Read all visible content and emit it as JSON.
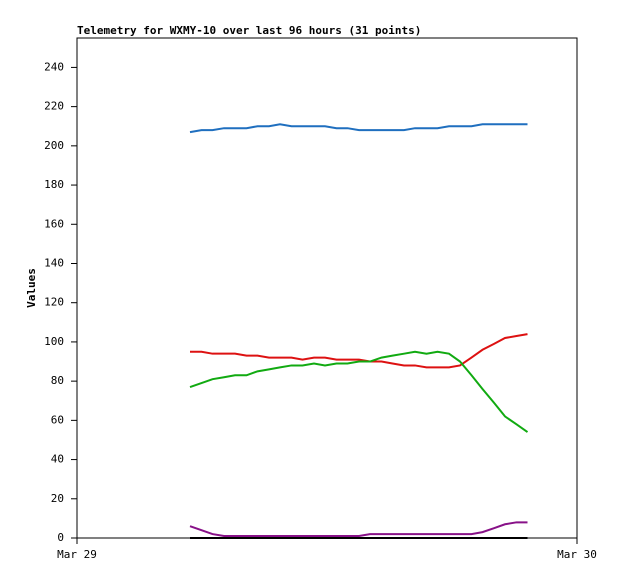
{
  "chart_data": {
    "type": "line",
    "title": "Telemetry for WXMY-10 over last 96 hours (31 points)",
    "y_label": "Values",
    "x": [
      0.226,
      0.249,
      0.271,
      0.294,
      0.316,
      0.339,
      0.361,
      0.384,
      0.406,
      0.429,
      0.451,
      0.474,
      0.496,
      0.519,
      0.541,
      0.564,
      0.586,
      0.609,
      0.631,
      0.654,
      0.676,
      0.699,
      0.721,
      0.744,
      0.766,
      0.789,
      0.811,
      0.834,
      0.856,
      0.879,
      0.901
    ],
    "xlim": [
      0,
      1
    ],
    "xticks": [
      {
        "value": 0,
        "label": "Mar 29"
      },
      {
        "value": 1,
        "label": "Mar 30"
      }
    ],
    "ylim": [
      0,
      255
    ],
    "yticks": [
      0,
      20,
      40,
      60,
      80,
      100,
      120,
      140,
      160,
      180,
      200,
      220,
      240
    ],
    "series": [
      {
        "color": "#1f6fbf",
        "values": [
          207,
          208,
          208,
          209,
          209,
          209,
          210,
          210,
          211,
          210,
          210,
          210,
          210,
          209,
          209,
          208,
          208,
          208,
          208,
          208,
          209,
          209,
          209,
          210,
          210,
          210,
          211,
          211,
          211,
          211,
          211
        ]
      },
      {
        "color": "#dd1111",
        "values": [
          95,
          95,
          94,
          94,
          94,
          93,
          93,
          92,
          92,
          92,
          91,
          92,
          92,
          91,
          91,
          91,
          90,
          90,
          89,
          88,
          88,
          87,
          87,
          87,
          88,
          92,
          96,
          99,
          102,
          103,
          104
        ]
      },
      {
        "color": "#11aa11",
        "values": [
          77,
          79,
          81,
          82,
          83,
          83,
          85,
          86,
          87,
          88,
          88,
          89,
          88,
          89,
          89,
          90,
          90,
          92,
          93,
          94,
          95,
          94,
          95,
          94,
          90,
          83,
          76,
          69,
          62,
          58,
          54
        ]
      },
      {
        "color": "#881188",
        "values": [
          6,
          4,
          2,
          1,
          1,
          1,
          1,
          1,
          1,
          1,
          1,
          1,
          1,
          1,
          1,
          1,
          2,
          2,
          2,
          2,
          2,
          2,
          2,
          2,
          2,
          2,
          3,
          5,
          7,
          8,
          8
        ]
      },
      {
        "color": "#000000",
        "values": [
          0,
          0,
          0,
          0,
          0,
          0,
          0,
          0,
          0,
          0,
          0,
          0,
          0,
          0,
          0,
          0,
          0,
          0,
          0,
          0,
          0,
          0,
          0,
          0,
          0,
          0,
          0,
          0,
          0,
          0,
          0
        ]
      }
    ]
  }
}
